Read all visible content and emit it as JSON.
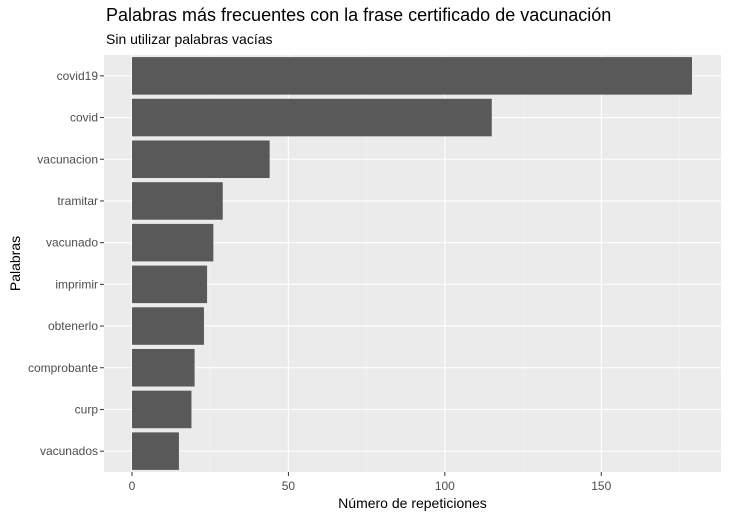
{
  "chart_data": {
    "type": "bar",
    "orientation": "horizontal",
    "title": "Palabras más frecuentes con la frase certificado de vacunación",
    "subtitle": "Sin utilizar palabras vacías",
    "xlabel": "Número de repeticiones",
    "ylabel": "Palabras",
    "categories": [
      "covid19",
      "covid",
      "vacunacion",
      "tramitar",
      "vacunado",
      "imprimir",
      "obtenerlo",
      "comprobante",
      "curp",
      "vacunados"
    ],
    "values": [
      179,
      115,
      44,
      29,
      26,
      24,
      23,
      20,
      19,
      15
    ],
    "xlim": [
      0,
      185
    ],
    "xticks": [
      0,
      50,
      100,
      150
    ],
    "grid": true,
    "colors": {
      "bar": "#595959",
      "panel": "#ebebeb",
      "grid_major": "#ffffff",
      "grid_minor": "#f3f3f3",
      "tick_text": "#4d4d4d"
    }
  }
}
